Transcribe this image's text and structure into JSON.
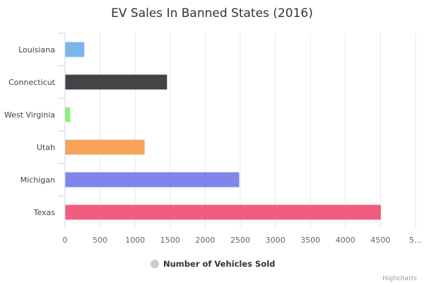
{
  "chart_data": {
    "type": "bar",
    "orientation": "horizontal",
    "title": "EV Sales In Banned States (2016)",
    "categories": [
      "Louisiana",
      "Connecticut",
      "West Virginia",
      "Utah",
      "Michigan",
      "Texas"
    ],
    "series": [
      {
        "name": "Number of Vehicles Sold",
        "values": [
          270,
          1450,
          70,
          1130,
          2480,
          4500
        ],
        "colors": [
          "#7cb5ec",
          "#434348",
          "#90ed7d",
          "#f7a35c",
          "#8085e9",
          "#f15c80"
        ]
      }
    ],
    "xaxis": {
      "ticks": [
        "0",
        "500",
        "1000",
        "1500",
        "2000",
        "2500",
        "3000",
        "3500",
        "4000",
        "4500",
        "5…"
      ],
      "range": [
        0,
        5000
      ]
    },
    "grid": true,
    "legend": {
      "position": "bottom-center",
      "marker_color": "#cccccc"
    }
  },
  "credits": "Highcharts"
}
